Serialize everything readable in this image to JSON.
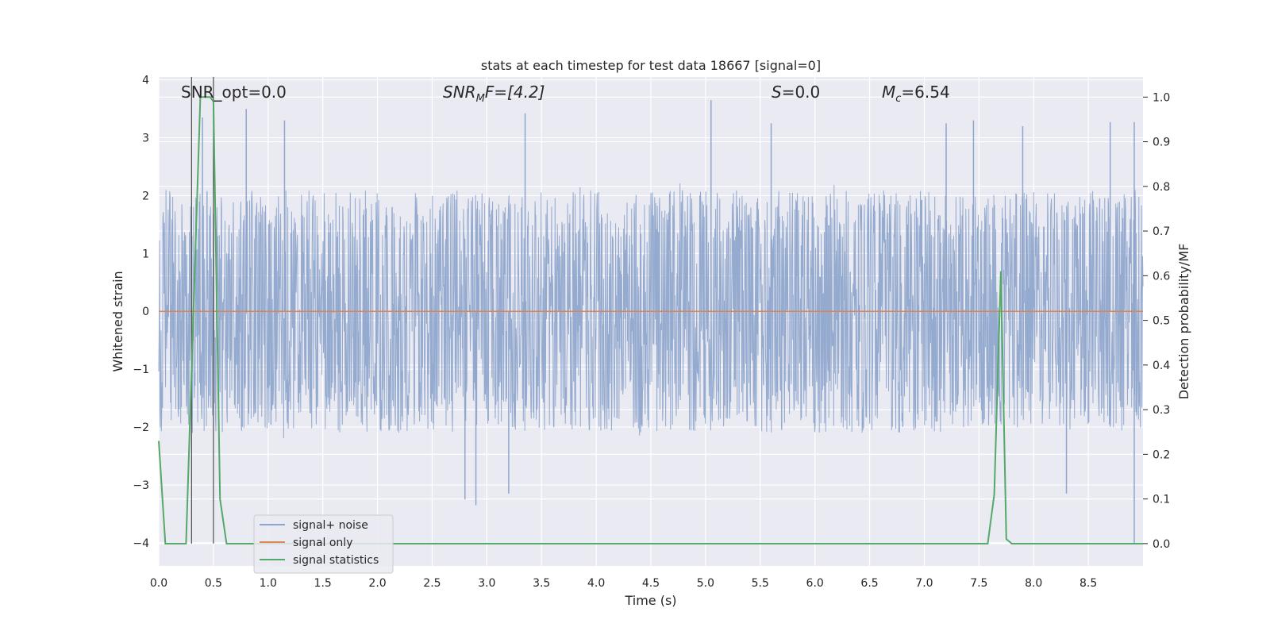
{
  "chart_data": {
    "type": "line",
    "title": "stats at each timestep for test data 18667 [signal=0]",
    "xlabel": "Time (s)",
    "ylabel": "Whitened strain",
    "y2label": "Detection probability/MF",
    "xlim": [
      0,
      9.0
    ],
    "ylim": [
      -4.4,
      4.05
    ],
    "y2lim": [
      -0.05,
      1.045
    ],
    "xticks": [
      "0.0",
      "0.5",
      "1.0",
      "1.5",
      "2.0",
      "2.5",
      "3.0",
      "3.5",
      "4.0",
      "4.5",
      "5.0",
      "5.5",
      "6.0",
      "6.5",
      "7.0",
      "7.5",
      "8.0",
      "8.5"
    ],
    "xtick_values": [
      0,
      0.5,
      1.0,
      1.5,
      2.0,
      2.5,
      3.0,
      3.5,
      4.0,
      4.5,
      5.0,
      5.5,
      6.0,
      6.5,
      7.0,
      7.5,
      8.0,
      8.5
    ],
    "yticks": [
      "−4",
      "−3",
      "−2",
      "−1",
      "0",
      "1",
      "2",
      "3",
      "4"
    ],
    "ytick_values": [
      -4,
      -3,
      -2,
      -1,
      0,
      1,
      2,
      3,
      4
    ],
    "y2ticks": [
      "0.0",
      "0.1",
      "0.2",
      "0.3",
      "0.4",
      "0.5",
      "0.6",
      "0.7",
      "0.8",
      "0.9",
      "1.0"
    ],
    "y2tick_values": [
      0.0,
      0.1,
      0.2,
      0.3,
      0.4,
      0.5,
      0.6,
      0.7,
      0.8,
      0.9,
      1.0
    ],
    "grid": true,
    "legend_placement": "lower-left",
    "annotations": {
      "snr_opt": "SNR_opt=0.0",
      "snr_mf_sym": "SNR",
      "snr_mf_sub": "M",
      "snr_mf_rest": "F=[4.2]",
      "s_sym": "S",
      "s_rest": "=0.0",
      "mc_sym": "M",
      "mc_sub": "c",
      "mc_rest": "=6.54"
    },
    "series": [
      {
        "name": "signal+ noise",
        "color": "#8fa6cc",
        "noise_envelope": [
          -2.0,
          2.0
        ],
        "peaks": [
          [
            0.4,
            3.35
          ],
          [
            0.8,
            3.5
          ],
          [
            1.15,
            3.3
          ],
          [
            3.35,
            3.42
          ],
          [
            5.05,
            3.65
          ],
          [
            5.6,
            3.25
          ],
          [
            7.2,
            3.25
          ],
          [
            7.45,
            3.3
          ],
          [
            7.9,
            3.2
          ],
          [
            8.7,
            3.27
          ],
          [
            8.92,
            3.27
          ],
          [
            2.9,
            -3.35
          ],
          [
            2.8,
            -3.25
          ],
          [
            3.2,
            -3.15
          ],
          [
            8.3,
            -3.15
          ],
          [
            8.92,
            -4.0
          ]
        ]
      },
      {
        "name": "signal only",
        "color": "#dd8452",
        "x": [
          0,
          9.0
        ],
        "y": [
          0,
          0
        ]
      },
      {
        "name": "signal statistics",
        "color": "#55a868",
        "axis": "right",
        "x": [
          0.0,
          0.06,
          0.25,
          0.38,
          0.47,
          0.5,
          0.56,
          0.62,
          0.7,
          7.58,
          7.64,
          7.7,
          7.75,
          7.8,
          9.0
        ],
        "y": [
          0.23,
          0.0,
          0.0,
          1.0,
          1.0,
          0.99,
          0.1,
          0.0,
          0.0,
          0.0,
          0.11,
          0.61,
          0.01,
          0.0,
          0.0
        ]
      }
    ],
    "vlines_x": [
      0.3,
      0.5
    ]
  }
}
